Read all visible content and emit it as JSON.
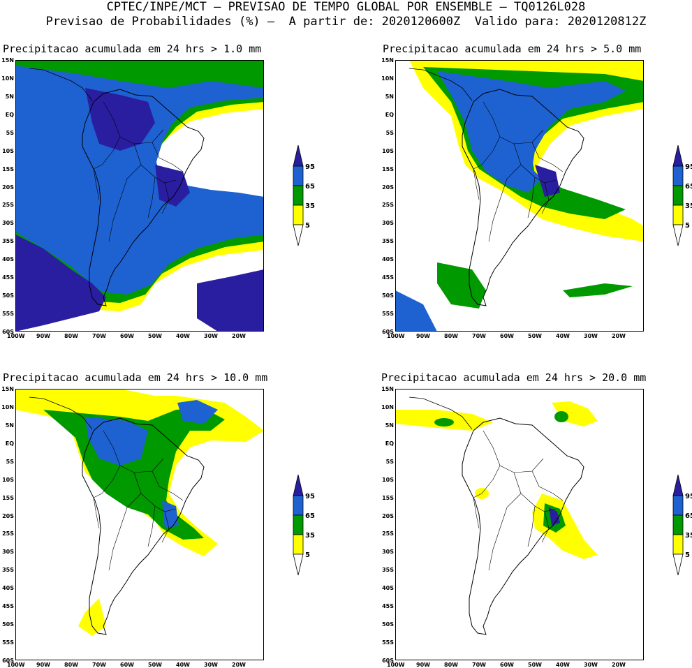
{
  "header": {
    "line1": "CPTEC/INPE/MCT – PREVISAO DE TEMPO GLOBAL POR ENSEMBLE – TQ0126L028",
    "line2": "Previsao de Probabilidades (%) –  A partir de: 2020120600Z  Valido para: 2020120812Z"
  },
  "panels": [
    {
      "id": "p1",
      "title": "Precipitacao acumulada em 24 hrs > 1.0 mm"
    },
    {
      "id": "p2",
      "title": "Precipitacao acumulada em 24 hrs > 5.0 mm"
    },
    {
      "id": "p3",
      "title": "Precipitacao acumulada em 24 hrs > 10.0 mm"
    },
    {
      "id": "p4",
      "title": "Precipitacao acumulada em 24 hrs > 20.0 mm"
    }
  ],
  "lat_labels": [
    "15N",
    "10N",
    "5N",
    "EQ",
    "5S",
    "10S",
    "15S",
    "20S",
    "25S",
    "30S",
    "35S",
    "40S",
    "45S",
    "50S",
    "55S",
    "60S"
  ],
  "lon_labels": [
    "100W",
    "90W",
    "80W",
    "70W",
    "60W",
    "50W",
    "40W",
    "30W",
    "20W"
  ],
  "legend": {
    "levels": [
      "95",
      "65",
      "35",
      "5"
    ],
    "colors": {
      "5": "#ffff00",
      "35": "#009900",
      "65": "#1e62d2",
      "95": "#2a1ea0"
    }
  },
  "colors": {
    "yellow": "#ffff00",
    "green": "#009900",
    "blue": "#1e62d2",
    "navy": "#2a1ea0"
  }
}
